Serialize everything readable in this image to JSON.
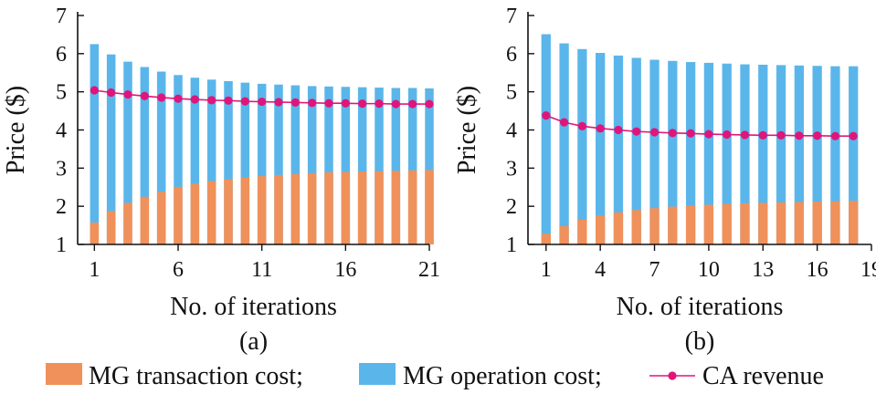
{
  "legend": {
    "items": [
      {
        "label": "MG transaction cost;",
        "color": "#f0915b",
        "kind": "bar"
      },
      {
        "label": "MG operation cost;",
        "color": "#5ab6ea",
        "kind": "bar"
      },
      {
        "label": "CA revenue",
        "color": "#e0157a",
        "kind": "line-marker"
      }
    ]
  },
  "chart_data": [
    {
      "type": "bar",
      "panel_label": "(a)",
      "xlabel": "No. of iterations",
      "ylabel": "Price ($)",
      "ylim": [
        1,
        7
      ],
      "yticks": [
        1,
        2,
        3,
        4,
        5,
        6,
        7
      ],
      "xticks": [
        1,
        6,
        11,
        16,
        21
      ],
      "x": [
        1,
        2,
        3,
        4,
        5,
        6,
        7,
        8,
        9,
        10,
        11,
        12,
        13,
        14,
        15,
        16,
        17,
        18,
        19,
        20,
        21
      ],
      "series": [
        {
          "name": "MG transaction cost",
          "type": "bar",
          "color": "#f0915b",
          "values": [
            1.57,
            1.87,
            2.09,
            2.25,
            2.38,
            2.51,
            2.59,
            2.66,
            2.71,
            2.75,
            2.79,
            2.82,
            2.84,
            2.87,
            2.89,
            2.9,
            2.91,
            2.92,
            2.93,
            2.94,
            2.95
          ]
        },
        {
          "name": "MG operation cost",
          "type": "bar",
          "color": "#5ab6ea",
          "values": [
            6.25,
            5.98,
            5.79,
            5.65,
            5.53,
            5.44,
            5.37,
            5.32,
            5.28,
            5.24,
            5.21,
            5.19,
            5.17,
            5.15,
            5.14,
            5.13,
            5.12,
            5.11,
            5.1,
            5.1,
            5.09
          ]
        },
        {
          "name": "CA revenue",
          "type": "line",
          "color": "#e0157a",
          "values": [
            5.04,
            4.98,
            4.93,
            4.89,
            4.85,
            4.82,
            4.8,
            4.78,
            4.77,
            4.75,
            4.74,
            4.73,
            4.72,
            4.71,
            4.7,
            4.7,
            4.69,
            4.69,
            4.68,
            4.68,
            4.68
          ]
        }
      ]
    },
    {
      "type": "bar",
      "panel_label": "(b)",
      "xlabel": "No. of iterations",
      "ylabel": "Price ($)",
      "ylim": [
        1,
        7
      ],
      "yticks": [
        1,
        2,
        3,
        4,
        5,
        6,
        7
      ],
      "xticks": [
        1,
        4,
        7,
        10,
        13,
        16,
        19
      ],
      "x": [
        1,
        2,
        3,
        4,
        5,
        6,
        7,
        8,
        9,
        10,
        11,
        12,
        13,
        14,
        15,
        16,
        17,
        18
      ],
      "series": [
        {
          "name": "MG transaction cost",
          "type": "bar",
          "color": "#f0915b",
          "values": [
            1.28,
            1.48,
            1.65,
            1.76,
            1.84,
            1.9,
            1.95,
            1.99,
            2.02,
            2.04,
            2.06,
            2.08,
            2.09,
            2.1,
            2.11,
            2.12,
            2.13,
            2.14
          ]
        },
        {
          "name": "MG operation cost",
          "type": "bar",
          "color": "#5ab6ea",
          "values": [
            6.51,
            6.27,
            6.12,
            6.02,
            5.95,
            5.89,
            5.84,
            5.81,
            5.78,
            5.76,
            5.74,
            5.72,
            5.71,
            5.7,
            5.69,
            5.68,
            5.67,
            5.67
          ]
        },
        {
          "name": "CA revenue",
          "type": "line",
          "color": "#e0157a",
          "values": [
            4.38,
            4.2,
            4.1,
            4.04,
            4.0,
            3.96,
            3.94,
            3.92,
            3.91,
            3.89,
            3.88,
            3.87,
            3.86,
            3.86,
            3.85,
            3.85,
            3.84,
            3.84
          ]
        }
      ]
    }
  ]
}
